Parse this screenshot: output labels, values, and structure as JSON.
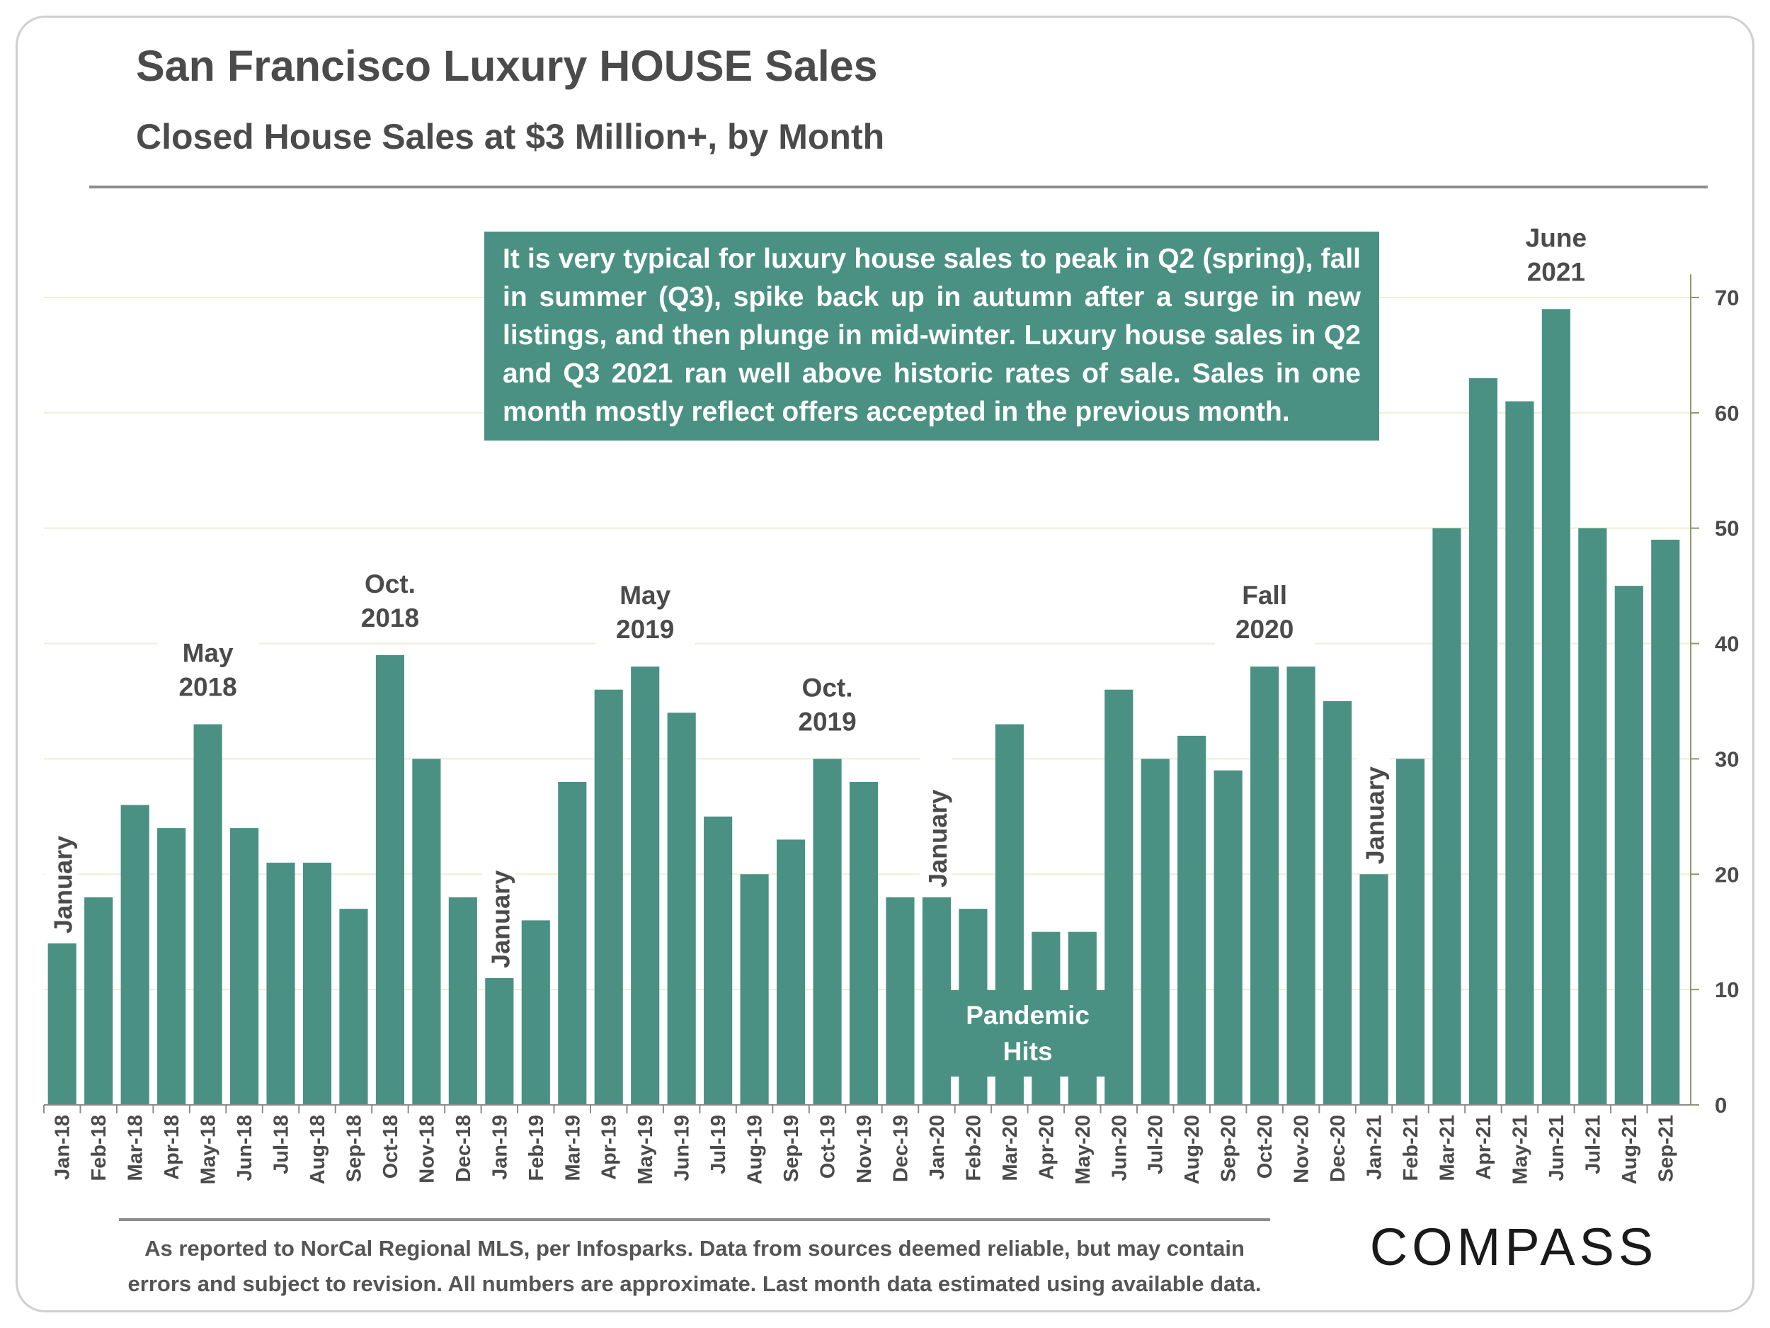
{
  "title": "San Francisco Luxury HOUSE Sales",
  "subtitle": "Closed House Sales at $3 Million+, by Month",
  "note": "It is very typical for luxury house sales to peak in Q2 (spring), fall in summer (Q3),  spike back up in autumn after a surge in new listings, and then plunge in mid-winter.  Luxury house sales in Q2 and Q3 2021 ran well above historic rates of sale. Sales in one month mostly reflect offers accepted in the previous month.",
  "footer": {
    "line1": "As reported to NorCal Regional MLS, per Infosparks. Data from sources deemed reliable, but may contain",
    "line2": "errors and subject to revision. All numbers are approximate. Last month data estimated using available data."
  },
  "logo": {
    "text": "COMPASS",
    "color": "#1a1a1a"
  },
  "colors": {
    "bar": "#4a9184",
    "axis": "#8a9a6a",
    "grid": "#eeeed8",
    "text": "#4b4b4b"
  },
  "chart_data": {
    "type": "bar",
    "categories": [
      "Jan-18",
      "Feb-18",
      "Mar-18",
      "Apr-18",
      "May-18",
      "Jun-18",
      "Jul-18",
      "Aug-18",
      "Sep-18",
      "Oct-18",
      "Nov-18",
      "Dec-18",
      "Jan-19",
      "Feb-19",
      "Mar-19",
      "Apr-19",
      "May-19",
      "Jun-19",
      "Jul-19",
      "Aug-19",
      "Sep-19",
      "Oct-19",
      "Nov-19",
      "Dec-19",
      "Jan-20",
      "Feb-20",
      "Mar-20",
      "Apr-20",
      "May-20",
      "Jun-20",
      "Jul-20",
      "Aug-20",
      "Sep-20",
      "Oct-20",
      "Nov-20",
      "Dec-20",
      "Jan-21",
      "Feb-21",
      "Mar-21",
      "Apr-21",
      "May-21",
      "Jun-21",
      "Jul-21",
      "Aug-21",
      "Sep-21"
    ],
    "values": [
      14,
      18,
      26,
      24,
      33,
      24,
      21,
      21,
      17,
      39,
      30,
      18,
      11,
      16,
      28,
      36,
      38,
      34,
      25,
      20,
      23,
      30,
      28,
      18,
      18,
      17,
      33,
      15,
      15,
      36,
      30,
      32,
      29,
      38,
      38,
      35,
      20,
      30,
      50,
      63,
      61,
      69,
      50,
      45,
      49
    ],
    "ylim": [
      0,
      70
    ],
    "yticks": [
      0,
      10,
      20,
      30,
      40,
      50,
      60,
      70
    ],
    "y_axis_side": "right",
    "grid": true,
    "annotations": [
      {
        "index": 0,
        "text": "January",
        "style": "rotated"
      },
      {
        "index": 4,
        "line1": "May",
        "line2": "2018",
        "style": "label"
      },
      {
        "index": 9,
        "line1": "Oct.",
        "line2": "2018",
        "style": "label"
      },
      {
        "index": 12,
        "text": "January",
        "style": "rotated"
      },
      {
        "index": 16,
        "line1": "May",
        "line2": "2019",
        "style": "label"
      },
      {
        "index": 21,
        "line1": "Oct.",
        "line2": "2019",
        "style": "label"
      },
      {
        "index": 24,
        "text": "January",
        "style": "rotated"
      },
      {
        "index": 33,
        "line1": "Fall",
        "line2": "2020",
        "style": "label"
      },
      {
        "index": 36,
        "text": "January",
        "style": "rotated"
      },
      {
        "index": 41,
        "line1": "June",
        "line2": "2021",
        "style": "label"
      }
    ],
    "callout": {
      "line1": "Pandemic",
      "line2": "Hits"
    }
  }
}
